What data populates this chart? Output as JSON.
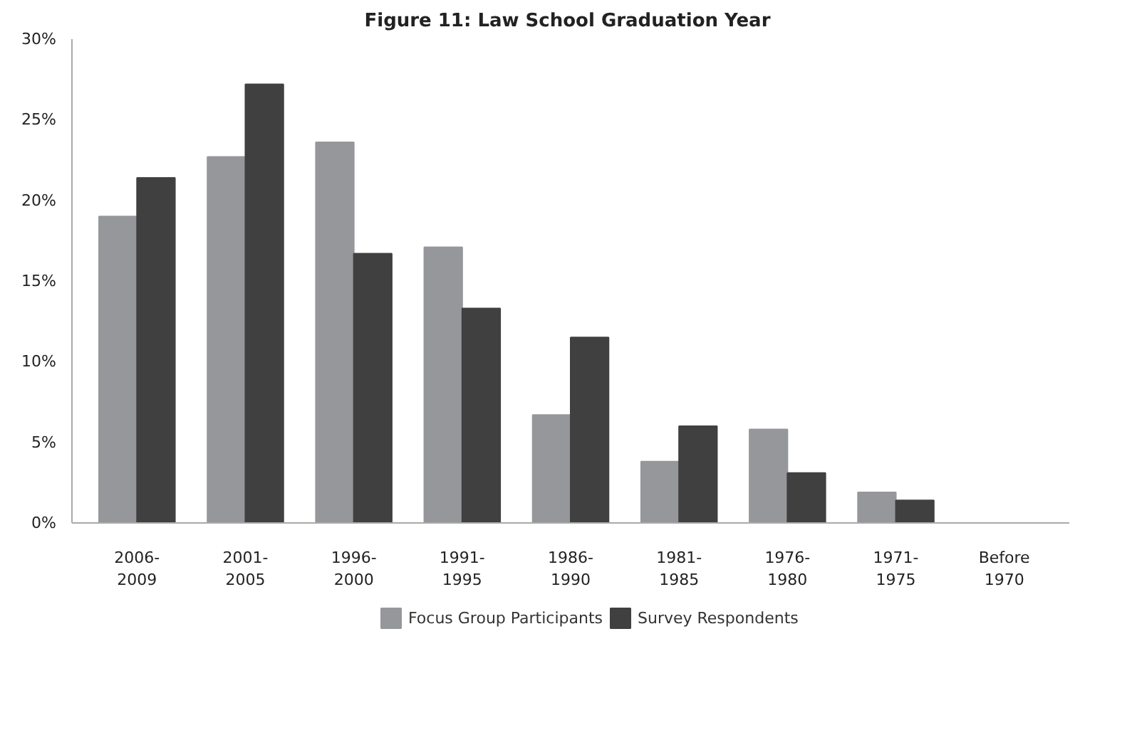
{
  "chart_data": {
    "type": "bar",
    "title": "Figure 11:  Law School Graduation Year",
    "categories": [
      "2006-\n2009",
      "2001-\n2005",
      "1996-\n2000",
      "1991-\n1995",
      "1986-\n1990",
      "1981-\n1985",
      "1976-\n1980",
      "1971-\n1975",
      "Before\n1970"
    ],
    "series": [
      {
        "name": "Focus Group Participants",
        "color": "#96979b",
        "values": [
          19.0,
          22.7,
          23.6,
          17.1,
          6.7,
          3.8,
          5.8,
          1.9,
          0
        ]
      },
      {
        "name": "Survey Respondents",
        "color": "#404040",
        "values": [
          21.4,
          27.2,
          16.7,
          13.3,
          11.5,
          6.0,
          3.1,
          1.4,
          0
        ]
      }
    ],
    "ylim": [
      0,
      30
    ],
    "yticks": [
      {
        "value": 0,
        "label": "0%"
      },
      {
        "value": 5,
        "label": "5%"
      },
      {
        "value": 10,
        "label": "10%"
      },
      {
        "value": 15,
        "label": "15%"
      },
      {
        "value": 20,
        "label": "20%"
      },
      {
        "value": 25,
        "label": "25%"
      },
      {
        "value": 30,
        "label": "30%"
      }
    ],
    "grid": false,
    "legend": "bottom"
  }
}
